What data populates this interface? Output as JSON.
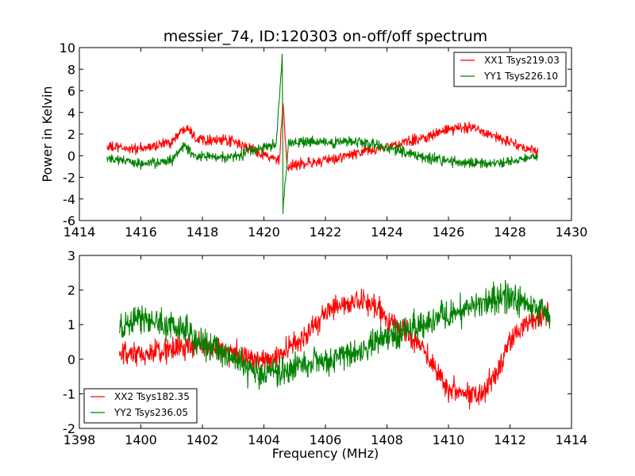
{
  "chart_data": [
    {
      "type": "line",
      "title": "messier_74, ID:120303 on-off/off spectrum",
      "xlabel": "",
      "ylabel": "Power in Kelvin",
      "xlim": [
        1414,
        1430
      ],
      "ylim": [
        -6,
        10
      ],
      "xticks": [
        1414,
        1416,
        1418,
        1420,
        1422,
        1424,
        1426,
        1428,
        1430
      ],
      "yticks": [
        -6,
        -4,
        -2,
        0,
        2,
        4,
        6,
        8,
        10
      ],
      "grid": false,
      "legend_position": "top-right",
      "x_range": [
        1414.9,
        1428.9
      ],
      "series": [
        {
          "name": "XX1 Tsys219.03",
          "color": "#ff0000",
          "noise": 0.35,
          "profile": [
            [
              1414.9,
              0.8
            ],
            [
              1416.0,
              0.6
            ],
            [
              1417.0,
              1.3
            ],
            [
              1417.5,
              2.8
            ],
            [
              1417.8,
              1.6
            ],
            [
              1419.0,
              1.3
            ],
            [
              1420.0,
              0.1
            ],
            [
              1420.5,
              -0.5
            ],
            [
              1420.62,
              5.0
            ],
            [
              1420.75,
              -1.3
            ],
            [
              1421.0,
              -0.8
            ],
            [
              1422.0,
              -0.5
            ],
            [
              1423.0,
              0.2
            ],
            [
              1424.0,
              0.8
            ],
            [
              1425.0,
              1.5
            ],
            [
              1426.0,
              2.4
            ],
            [
              1426.8,
              2.7
            ],
            [
              1427.5,
              1.8
            ],
            [
              1428.0,
              1.2
            ],
            [
              1428.9,
              0.3
            ]
          ]
        },
        {
          "name": "YY1 Tsys226.10",
          "color": "#008000",
          "noise": 0.35,
          "profile": [
            [
              1414.9,
              -0.2
            ],
            [
              1415.5,
              -0.5
            ],
            [
              1416.0,
              -0.8
            ],
            [
              1417.0,
              -0.5
            ],
            [
              1417.4,
              1.0
            ],
            [
              1417.8,
              -0.1
            ],
            [
              1419.0,
              -0.1
            ],
            [
              1420.0,
              0.8
            ],
            [
              1420.4,
              1.0
            ],
            [
              1420.6,
              9.4
            ],
            [
              1420.62,
              -5.0
            ],
            [
              1420.8,
              1.2
            ],
            [
              1422.0,
              1.2
            ],
            [
              1423.0,
              1.3
            ],
            [
              1424.0,
              0.8
            ],
            [
              1425.0,
              0.0
            ],
            [
              1426.0,
              -0.5
            ],
            [
              1427.0,
              -0.8
            ],
            [
              1428.0,
              -0.6
            ],
            [
              1428.9,
              0.0
            ]
          ]
        }
      ]
    },
    {
      "type": "line",
      "title": "",
      "xlabel": "Frequency (MHz)",
      "ylabel": "",
      "xlim": [
        1398,
        1414
      ],
      "ylim": [
        -2,
        3
      ],
      "xticks": [
        1398,
        1400,
        1402,
        1404,
        1406,
        1408,
        1410,
        1412,
        1414
      ],
      "yticks": [
        -2,
        -1,
        0,
        1,
        2,
        3
      ],
      "grid": false,
      "legend_position": "bottom-left",
      "x_range": [
        1399.3,
        1413.3
      ],
      "series": [
        {
          "name": "XX2 Tsys182.35",
          "color": "#ff0000",
          "noise": 0.25,
          "profile": [
            [
              1399.3,
              0.1
            ],
            [
              1400.0,
              0.1
            ],
            [
              1401.0,
              0.3
            ],
            [
              1402.0,
              0.4
            ],
            [
              1403.0,
              0.2
            ],
            [
              1404.0,
              -0.1
            ],
            [
              1405.0,
              0.4
            ],
            [
              1406.0,
              1.3
            ],
            [
              1406.5,
              1.6
            ],
            [
              1407.5,
              1.6
            ],
            [
              1408.0,
              1.2
            ],
            [
              1409.0,
              0.5
            ],
            [
              1410.0,
              -0.8
            ],
            [
              1410.5,
              -1.0
            ],
            [
              1411.0,
              -1.0
            ],
            [
              1411.5,
              -0.5
            ],
            [
              1412.0,
              0.5
            ],
            [
              1412.5,
              1.1
            ],
            [
              1413.3,
              1.3
            ]
          ]
        },
        {
          "name": "YY2 Tsys236.05",
          "color": "#008000",
          "noise": 0.3,
          "profile": [
            [
              1399.3,
              0.8
            ],
            [
              1400.0,
              1.2
            ],
            [
              1401.0,
              1.0
            ],
            [
              1402.0,
              0.5
            ],
            [
              1403.0,
              0.0
            ],
            [
              1404.0,
              -0.5
            ],
            [
              1405.0,
              -0.3
            ],
            [
              1406.0,
              0.0
            ],
            [
              1407.0,
              0.2
            ],
            [
              1408.0,
              0.6
            ],
            [
              1409.0,
              0.9
            ],
            [
              1410.0,
              1.3
            ],
            [
              1411.0,
              1.6
            ],
            [
              1412.0,
              1.8
            ],
            [
              1412.5,
              1.6
            ],
            [
              1413.3,
              1.3
            ]
          ]
        }
      ]
    }
  ]
}
